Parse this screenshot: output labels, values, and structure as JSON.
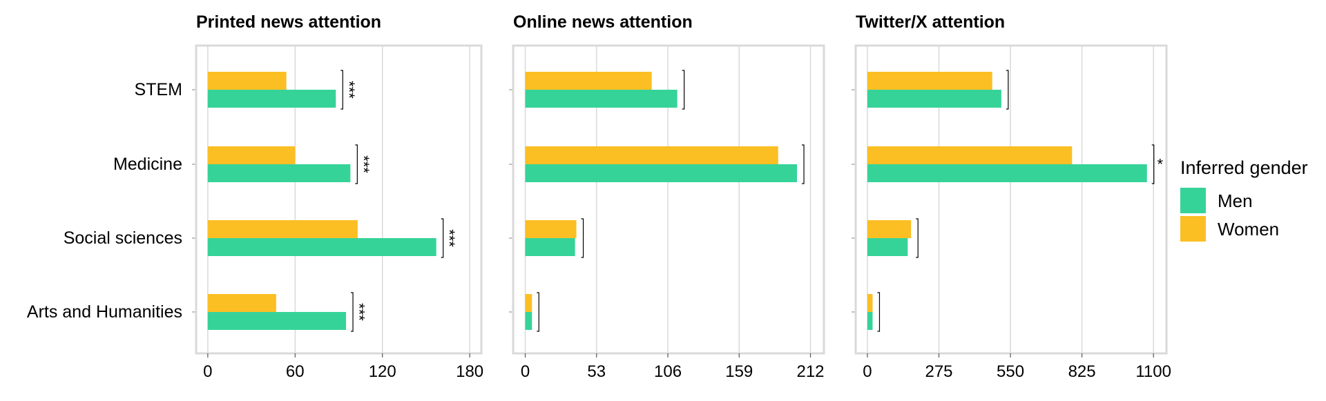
{
  "chart_data": {
    "type": "bar",
    "orientation": "horizontal",
    "categories": [
      "STEM",
      "Medicine",
      "Social sciences",
      "Arts and Humanities"
    ],
    "legend": {
      "title": "Inferred gender",
      "placement": "right",
      "entries": [
        {
          "label": "Men",
          "color": "#36D399"
        },
        {
          "label": "Women",
          "color": "#FBBF24"
        }
      ]
    },
    "grid": true,
    "panels": [
      {
        "title": "Printed news attention",
        "xlim": [
          -8,
          188
        ],
        "ticks": [
          0,
          60,
          120,
          180
        ],
        "tick_labels": [
          "0",
          "60",
          "120",
          "180"
        ],
        "series": [
          {
            "name": "Men",
            "values": [
              88,
              98,
              157,
              95
            ]
          },
          {
            "name": "Women",
            "values": [
              54,
              60,
              103,
              47
            ]
          }
        ],
        "significance": [
          "***",
          "***",
          "***",
          "***"
        ]
      },
      {
        "title": "Online news attention",
        "xlim": [
          -9,
          222
        ],
        "ticks": [
          0,
          53,
          106,
          159,
          212
        ],
        "tick_labels": [
          "0",
          "53",
          "106",
          "159",
          "212"
        ],
        "series": [
          {
            "name": "Men",
            "values": [
              113,
              202,
              37,
              5
            ]
          },
          {
            "name": "Women",
            "values": [
              94,
              188,
              38,
              5
            ]
          }
        ],
        "significance": [
          "",
          "",
          "",
          ""
        ]
      },
      {
        "title": "Twitter/X attention",
        "xlim": [
          -45,
          1150
        ],
        "ticks": [
          0,
          275,
          550,
          825,
          1100
        ],
        "tick_labels": [
          "0",
          "275",
          "550",
          "825",
          "1100"
        ],
        "series": [
          {
            "name": "Men",
            "values": [
              515,
              1075,
              155,
              20
            ]
          },
          {
            "name": "Women",
            "values": [
              480,
              787,
              168,
              20
            ]
          }
        ],
        "significance": [
          "",
          "*",
          "",
          ""
        ]
      }
    ]
  }
}
